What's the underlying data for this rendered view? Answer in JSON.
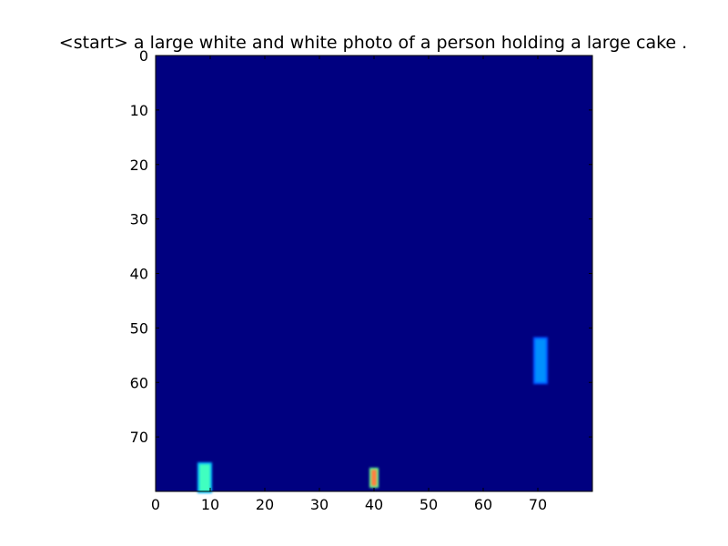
{
  "chart_data": {
    "type": "heatmap",
    "title": "<start> a large white and white photo of a person holding a large cake .",
    "xlabel": "",
    "ylabel": "",
    "xlim": [
      0,
      80
    ],
    "ylim": [
      80,
      0
    ],
    "xticks": [
      "0",
      "10",
      "20",
      "30",
      "40",
      "50",
      "60",
      "70"
    ],
    "yticks": [
      "0",
      "10",
      "20",
      "30",
      "40",
      "50",
      "60",
      "70"
    ],
    "grid": false,
    "colormap": "jet",
    "background_color": "#000080",
    "highlights": [
      {
        "name": "bottom-left-patch",
        "x": [
          8,
          10
        ],
        "y": [
          75,
          80
        ],
        "color": "#40ffc0",
        "glow": "#00b0ff"
      },
      {
        "name": "bottom-center-dots",
        "x": [
          39.5,
          40.5
        ],
        "y": [
          76,
          79
        ],
        "color": "#ff8040",
        "glow": "#60ff90"
      },
      {
        "name": "right-patch",
        "x": [
          69.5,
          71.5
        ],
        "y": [
          52,
          60
        ],
        "color": "#0090ff",
        "glow": "#0050ff"
      }
    ]
  }
}
